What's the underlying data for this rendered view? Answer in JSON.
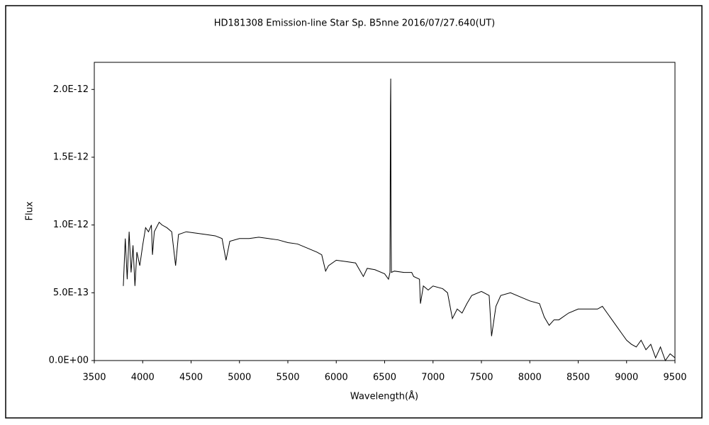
{
  "chart_data": {
    "type": "line",
    "title": "HD181308    Emission-line Star    Sp. B5nne    2016/07/27.640(UT)",
    "x_label": "Wavelength(Å)",
    "y_label": "Flux",
    "xlim": [
      3500,
      9500
    ],
    "xticks": [
      3500,
      4000,
      4500,
      5000,
      5500,
      6000,
      6500,
      7000,
      7500,
      8000,
      8500,
      9000,
      9500
    ],
    "ylim": [
      0,
      2.2e-12
    ],
    "yticks": [
      {
        "value": 0,
        "label": "0.0E+00"
      },
      {
        "value": 5e-13,
        "label": "5.0E-13"
      },
      {
        "value": 1e-12,
        "label": "1.0E-12"
      },
      {
        "value": 1.5e-12,
        "label": "1.5E-12"
      },
      {
        "value": 2e-12,
        "label": "2.0E-12"
      }
    ],
    "color": "#000000",
    "x": [
      3800,
      3820,
      3840,
      3860,
      3880,
      3900,
      3920,
      3940,
      3970,
      4000,
      4030,
      4060,
      4090,
      4101,
      4120,
      4170,
      4200,
      4250,
      4300,
      4340,
      4370,
      4450,
      4550,
      4650,
      4750,
      4820,
      4861,
      4900,
      5000,
      5100,
      5200,
      5300,
      5400,
      5500,
      5600,
      5700,
      5800,
      5850,
      5890,
      5920,
      6000,
      6100,
      6200,
      6280,
      6320,
      6400,
      6500,
      6540,
      6555,
      6560,
      6563,
      6566,
      6570,
      6600,
      6700,
      6780,
      6800,
      6860,
      6870,
      6900,
      6950,
      7000,
      7100,
      7150,
      7200,
      7250,
      7300,
      7350,
      7400,
      7500,
      7580,
      7605,
      7650,
      7700,
      7800,
      7900,
      8000,
      8100,
      8150,
      8200,
      8250,
      8300,
      8400,
      8500,
      8600,
      8700,
      8750,
      8800,
      8850,
      8900,
      8950,
      9000,
      9050,
      9100,
      9150,
      9200,
      9250,
      9300,
      9350,
      9400,
      9450,
      9500
    ],
    "values": [
      5.5e-13,
      9e-13,
      6e-13,
      9.5e-13,
      6.5e-13,
      8.5e-13,
      5.5e-13,
      8e-13,
      7e-13,
      8.5e-13,
      9.8e-13,
      9.5e-13,
      1e-12,
      7.8e-13,
      9.5e-13,
      1.02e-12,
      1e-12,
      9.8e-13,
      9.5e-13,
      7e-13,
      9.3e-13,
      9.5e-13,
      9.4e-13,
      9.3e-13,
      9.2e-13,
      9e-13,
      7.4e-13,
      8.8e-13,
      9e-13,
      9e-13,
      9.1e-13,
      9e-13,
      8.9e-13,
      8.7e-13,
      8.6e-13,
      8.3e-13,
      8e-13,
      7.8e-13,
      6.6e-13,
      7e-13,
      7.4e-13,
      7.3e-13,
      7.2e-13,
      6.2e-13,
      6.8e-13,
      6.7e-13,
      6.4e-13,
      6e-13,
      6.5e-13,
      1.87e-12,
      2.08e-12,
      1.04e-12,
      6.5e-13,
      6.6e-13,
      6.5e-13,
      6.5e-13,
      6.2e-13,
      6e-13,
      4.2e-13,
      5.5e-13,
      5.2e-13,
      5.5e-13,
      5.3e-13,
      5e-13,
      3.1e-13,
      3.8e-13,
      3.5e-13,
      4.2e-13,
      4.8e-13,
      5.1e-13,
      4.8e-13,
      1.8e-13,
      4e-13,
      4.8e-13,
      5e-13,
      4.7e-13,
      4.4e-13,
      4.2e-13,
      3.2e-13,
      2.6e-13,
      3e-13,
      3e-13,
      3.5e-13,
      3.8e-13,
      3.8e-13,
      3.8e-13,
      4e-13,
      3.5e-13,
      3e-13,
      2.5e-13,
      2e-13,
      1.5e-13,
      1.2e-13,
      1e-13,
      1.5e-13,
      8e-14,
      1.2e-13,
      2e-14,
      1e-13,
      0,
      5e-14,
      2e-14
    ]
  }
}
